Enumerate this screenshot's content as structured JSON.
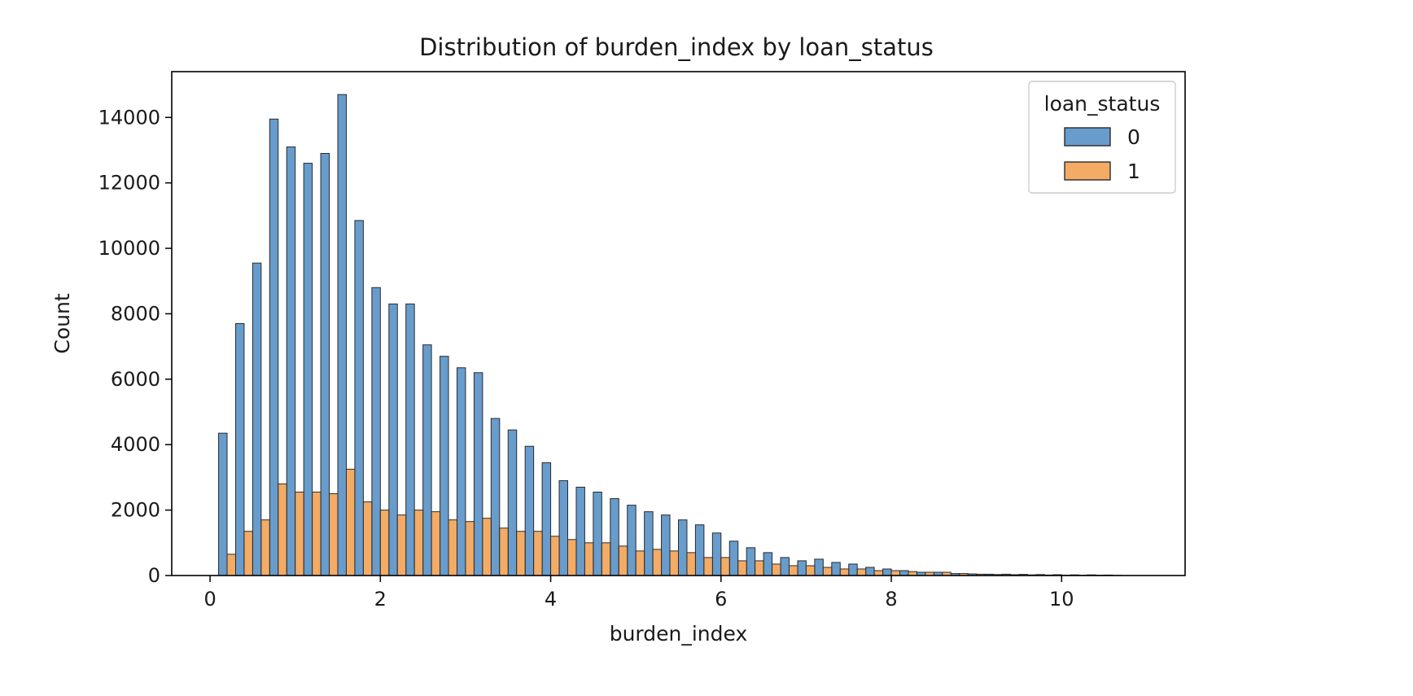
{
  "chart_data": {
    "type": "histogram",
    "title": "Distribution of burden_index by loan_status",
    "xlabel": "burden_index",
    "ylabel": "Count",
    "xlim": [
      -0.45,
      11.45
    ],
    "ylim": [
      0,
      15400
    ],
    "xticks": [
      0,
      2,
      4,
      6,
      8,
      10
    ],
    "yticks": [
      0,
      2000,
      4000,
      6000,
      8000,
      10000,
      12000,
      14000
    ],
    "bin_width": 0.2,
    "x": [
      0.2,
      0.4,
      0.6,
      0.8,
      1.0,
      1.2,
      1.4,
      1.6,
      1.8,
      2.0,
      2.2,
      2.4,
      2.6,
      2.8,
      3.0,
      3.2,
      3.4,
      3.6,
      3.8,
      4.0,
      4.2,
      4.4,
      4.6,
      4.8,
      5.0,
      5.2,
      5.4,
      5.6,
      5.8,
      6.0,
      6.2,
      6.4,
      6.6,
      6.8,
      7.0,
      7.2,
      7.4,
      7.6,
      7.8,
      8.0,
      8.2,
      8.4,
      8.6,
      8.8,
      9.0,
      9.2,
      9.4,
      9.6,
      9.8,
      10.0,
      10.2,
      10.4,
      10.6
    ],
    "series": [
      {
        "name": "0",
        "color": "#4c8bc3",
        "values": [
          4350,
          7700,
          9550,
          13950,
          13100,
          12600,
          12900,
          14700,
          10850,
          8800,
          8300,
          8300,
          7050,
          6700,
          6350,
          6200,
          4800,
          4450,
          3950,
          3450,
          2900,
          2700,
          2550,
          2350,
          2150,
          1950,
          1850,
          1700,
          1550,
          1300,
          1050,
          850,
          700,
          550,
          450,
          500,
          400,
          350,
          250,
          200,
          150,
          100,
          100,
          60,
          50,
          40,
          40,
          35,
          30,
          25,
          20,
          20,
          15
        ]
      },
      {
        "name": "1",
        "color": "#f19c4a",
        "values": [
          650,
          1350,
          1700,
          2800,
          2550,
          2550,
          2500,
          3250,
          2250,
          2000,
          1850,
          2000,
          1950,
          1700,
          1650,
          1750,
          1450,
          1350,
          1350,
          1200,
          1100,
          1000,
          1000,
          900,
          750,
          800,
          750,
          700,
          550,
          550,
          450,
          450,
          350,
          300,
          300,
          250,
          200,
          200,
          150,
          150,
          120,
          100,
          100,
          60,
          40,
          30,
          25,
          20,
          15,
          10,
          10,
          10,
          5
        ]
      }
    ],
    "legend": {
      "title": "loan_status",
      "placement": "upper-right",
      "entries": [
        "0",
        "1"
      ]
    },
    "grid": false
  }
}
